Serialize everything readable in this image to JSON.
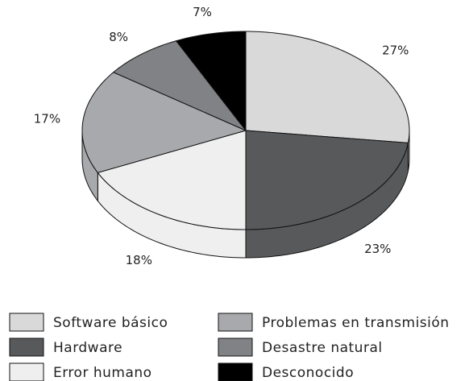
{
  "chart_data": {
    "type": "pie",
    "categories": [
      "Software básico",
      "Hardware",
      "Error humano",
      "Problemas en transmisión",
      "Desastre natural",
      "Desconocido"
    ],
    "values": [
      27,
      23,
      18,
      17,
      8,
      7
    ],
    "value_labels": [
      "27%",
      "23%",
      "18%",
      "17%",
      "8%",
      "7%"
    ],
    "colors": [
      "#d9d9d9",
      "#58595b",
      "#efefef",
      "#a7a9ac",
      "#808285",
      "#000000"
    ],
    "legend": "bottom"
  }
}
